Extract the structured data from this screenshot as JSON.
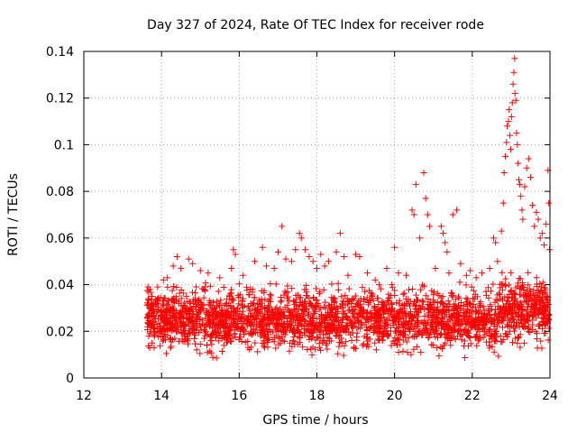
{
  "chart_data": {
    "type": "scatter",
    "title": "Day 327 of 2024, Rate Of TEC Index for receiver rode",
    "xlabel": "GPS time / hours",
    "ylabel": "ROTI / TECUs",
    "xlim": [
      12,
      24
    ],
    "ylim": [
      0,
      0.14
    ],
    "xticks": [
      12,
      14,
      16,
      18,
      20,
      22,
      24
    ],
    "xtick_labels": [
      "12",
      "14",
      "16",
      "18",
      "20",
      "22",
      "24"
    ],
    "yticks": [
      0,
      0.02,
      0.04,
      0.06,
      0.08,
      0.1,
      0.12,
      0.14
    ],
    "ytick_labels": [
      "0",
      "0.02",
      "0.04",
      "0.06",
      "0.08",
      "0.1",
      "0.12",
      "0.14"
    ],
    "grid": true,
    "marker": "+",
    "color": "#ff0000",
    "series": [
      {
        "name": "ROTI",
        "points": [
          [
            13.65,
            0.039
          ],
          [
            13.7,
            0.038
          ],
          [
            13.75,
            0.035
          ],
          [
            13.9,
            0.039
          ],
          [
            14.05,
            0.042
          ],
          [
            14.15,
            0.043
          ],
          [
            14.3,
            0.048
          ],
          [
            14.4,
            0.052
          ],
          [
            14.5,
            0.047
          ],
          [
            14.7,
            0.051
          ],
          [
            14.8,
            0.049
          ],
          [
            15.0,
            0.046
          ],
          [
            15.2,
            0.045
          ],
          [
            15.5,
            0.043
          ],
          [
            15.8,
            0.047
          ],
          [
            15.85,
            0.055
          ],
          [
            15.9,
            0.053
          ],
          [
            16.1,
            0.044
          ],
          [
            16.4,
            0.05
          ],
          [
            16.6,
            0.056
          ],
          [
            16.7,
            0.048
          ],
          [
            16.9,
            0.047
          ],
          [
            17.0,
            0.054
          ],
          [
            17.1,
            0.065
          ],
          [
            17.2,
            0.051
          ],
          [
            17.35,
            0.05
          ],
          [
            17.45,
            0.055
          ],
          [
            17.55,
            0.062
          ],
          [
            17.6,
            0.06
          ],
          [
            17.7,
            0.055
          ],
          [
            17.8,
            0.052
          ],
          [
            17.9,
            0.05
          ],
          [
            18.0,
            0.047
          ],
          [
            18.1,
            0.053
          ],
          [
            18.2,
            0.048
          ],
          [
            18.3,
            0.05
          ],
          [
            18.5,
            0.054
          ],
          [
            18.6,
            0.062
          ],
          [
            18.7,
            0.052
          ],
          [
            18.8,
            0.044
          ],
          [
            19.0,
            0.053
          ],
          [
            19.1,
            0.052
          ],
          [
            19.3,
            0.045
          ],
          [
            19.5,
            0.042
          ],
          [
            19.6,
            0.04
          ],
          [
            19.8,
            0.047
          ],
          [
            20.0,
            0.056
          ],
          [
            20.1,
            0.045
          ],
          [
            20.3,
            0.044
          ],
          [
            20.45,
            0.072
          ],
          [
            20.5,
            0.07
          ],
          [
            20.55,
            0.083
          ],
          [
            20.65,
            0.06
          ],
          [
            20.75,
            0.088
          ],
          [
            20.8,
            0.077
          ],
          [
            20.85,
            0.07
          ],
          [
            20.9,
            0.065
          ],
          [
            21.05,
            0.047
          ],
          [
            21.2,
            0.065
          ],
          [
            21.25,
            0.062
          ],
          [
            21.3,
            0.058
          ],
          [
            21.35,
            0.054
          ],
          [
            21.4,
            0.045
          ],
          [
            21.5,
            0.07
          ],
          [
            21.6,
            0.072
          ],
          [
            21.7,
            0.049
          ],
          [
            21.85,
            0.044
          ],
          [
            21.95,
            0.046
          ],
          [
            22.1,
            0.043
          ],
          [
            22.25,
            0.045
          ],
          [
            22.45,
            0.047
          ],
          [
            22.55,
            0.06
          ],
          [
            22.6,
            0.058
          ],
          [
            22.65,
            0.05
          ],
          [
            22.75,
            0.063
          ],
          [
            22.8,
            0.075
          ],
          [
            22.82,
            0.088
          ],
          [
            22.85,
            0.095
          ],
          [
            22.88,
            0.101
          ],
          [
            22.9,
            0.108
          ],
          [
            22.93,
            0.11
          ],
          [
            22.95,
            0.115
          ],
          [
            22.97,
            0.104
          ],
          [
            22.99,
            0.098
          ],
          [
            23.01,
            0.112
          ],
          [
            23.03,
            0.118
          ],
          [
            23.05,
            0.126
          ],
          [
            23.07,
            0.131
          ],
          [
            23.09,
            0.137
          ],
          [
            23.1,
            0.122
          ],
          [
            23.12,
            0.119
          ],
          [
            23.14,
            0.105
          ],
          [
            23.16,
            0.1
          ],
          [
            23.18,
            0.092
          ],
          [
            23.2,
            0.085
          ],
          [
            23.22,
            0.083
          ],
          [
            23.25,
            0.078
          ],
          [
            23.28,
            0.072
          ],
          [
            23.3,
            0.068
          ],
          [
            23.35,
            0.082
          ],
          [
            23.4,
            0.09
          ],
          [
            23.45,
            0.094
          ],
          [
            23.5,
            0.086
          ],
          [
            23.55,
            0.074
          ],
          [
            23.6,
            0.065
          ],
          [
            23.65,
            0.071
          ],
          [
            23.7,
            0.068
          ],
          [
            23.75,
            0.06
          ],
          [
            23.8,
            0.062
          ],
          [
            23.85,
            0.057
          ],
          [
            23.9,
            0.066
          ],
          [
            23.95,
            0.089
          ],
          [
            23.97,
            0.075
          ],
          [
            23.99,
            0.055
          ]
        ]
      }
    ]
  }
}
